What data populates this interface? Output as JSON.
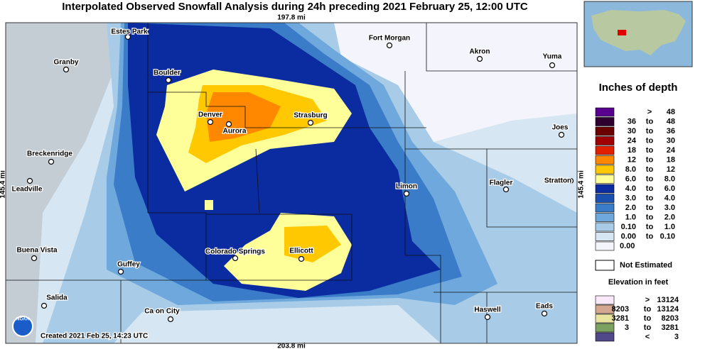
{
  "title": "Interpolated Observed Snowfall Analysis during 24h preceding 2021 February 25, 12:00 UTC",
  "top_distance": "197.8 mi",
  "bottom_distance": "203.8 mi",
  "left_distance": "145.4 mi",
  "right_distance": "145.4 mi",
  "created": "Created 2021 Feb 25, 14:23 UTC",
  "logo": "NOAA",
  "cities": [
    "Estes Park",
    "Fort Morgan",
    "Granby",
    "Akron",
    "Yuma",
    "Boulder",
    "Denver",
    "Strasburg",
    "Aurora",
    "Joes",
    "Breckenridge",
    "Leadville",
    "Limon",
    "Flagler",
    "Stratton",
    "Colorado Springs",
    "Ellicott",
    "Buena Vista",
    "Guffey",
    "Salida",
    "Haswell",
    "Eads",
    "Ca on City"
  ],
  "depth_legend": {
    "title": "Inches of depth",
    "rows": [
      {
        "label": [
          ">",
          "48"
        ],
        "color": "#5a0090"
      },
      {
        "label": [
          "36",
          "to",
          "48"
        ],
        "color": "#2d0030"
      },
      {
        "label": [
          "30",
          "to",
          "36"
        ],
        "color": "#6a0000"
      },
      {
        "label": [
          "24",
          "to",
          "30"
        ],
        "color": "#a00000"
      },
      {
        "label": [
          "18",
          "to",
          "24"
        ],
        "color": "#e02000"
      },
      {
        "label": [
          "12",
          "to",
          "18"
        ],
        "color": "#ff8800"
      },
      {
        "label": [
          "8.0",
          "to",
          "12"
        ],
        "color": "#ffc800"
      },
      {
        "label": [
          "6.0",
          "to",
          "8.0"
        ],
        "color": "#ffff99"
      },
      {
        "label": [
          "4.0",
          "to",
          "6.0"
        ],
        "color": "#0b2ba0"
      },
      {
        "label": [
          "3.0",
          "to",
          "4.0"
        ],
        "color": "#1a50b0"
      },
      {
        "label": [
          "2.0",
          "to",
          "3.0"
        ],
        "color": "#3a7cc8"
      },
      {
        "label": [
          "1.0",
          "to",
          "2.0"
        ],
        "color": "#6ea8dc"
      },
      {
        "label": [
          "0.10",
          "to",
          "1.0"
        ],
        "color": "#a8cce8"
      },
      {
        "label": [
          "0.00",
          "to",
          "0.10"
        ],
        "color": "#d6e6f2"
      },
      {
        "label": [
          "0.00"
        ],
        "color": "#f4f4fc"
      }
    ],
    "not_estimated": "Not Estimated"
  },
  "elevation_legend": {
    "title": "Elevation in feet",
    "rows": [
      {
        "label": [
          ">",
          "13124"
        ],
        "color": "#f8e8f8"
      },
      {
        "label": [
          "8203",
          "to",
          "13124"
        ],
        "color": "#d4a890"
      },
      {
        "label": [
          "3281",
          "to",
          "8203"
        ],
        "color": "#e8e4a0"
      },
      {
        "label": [
          "3",
          "to",
          "3281"
        ],
        "color": "#7ca060"
      },
      {
        "label": [
          "<",
          "3"
        ],
        "color": "#504888"
      }
    ]
  }
}
